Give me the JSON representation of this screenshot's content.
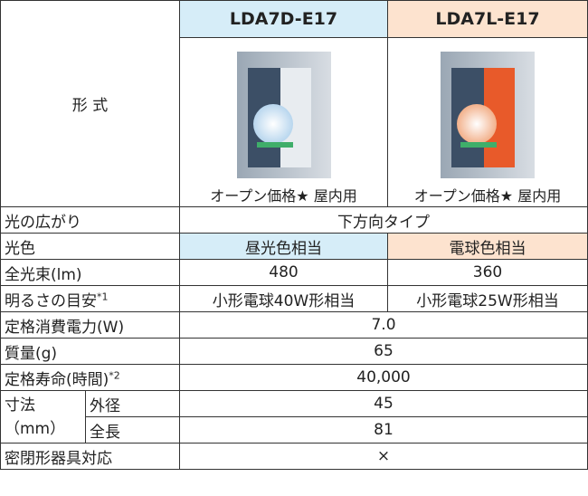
{
  "type_label": "形 式",
  "models": [
    {
      "name": "LDA7D-E17",
      "price_note": "オープン価格★ 屋内用"
    },
    {
      "name": "LDA7L-E17",
      "price_note": "オープン価格★ 屋内用"
    }
  ],
  "rows": [
    {
      "label": "光の広がり",
      "value": "下方向タイプ"
    },
    {
      "label": "光色",
      "values": [
        "昼光色相当",
        "電球色相当"
      ]
    },
    {
      "label": "全光束(lm)",
      "values": [
        "480",
        "360"
      ]
    },
    {
      "label": "明るさの目安",
      "note": "*1",
      "values": [
        "小形電球40W形相当",
        "小形電球25W形相当"
      ]
    },
    {
      "label": "定格消費電力(W)",
      "value": "7.0"
    },
    {
      "label": "質量(g)",
      "value": "65"
    },
    {
      "label": "定格寿命(時間)",
      "note": "*2",
      "value": "40,000"
    }
  ],
  "dimensions": {
    "label": "寸法",
    "unit": "（mm）",
    "rows": [
      {
        "label": "外径",
        "value": "45"
      },
      {
        "label": "全長",
        "value": "81"
      }
    ]
  },
  "last_row": {
    "label": "密閉形器具対応",
    "value": "×"
  }
}
